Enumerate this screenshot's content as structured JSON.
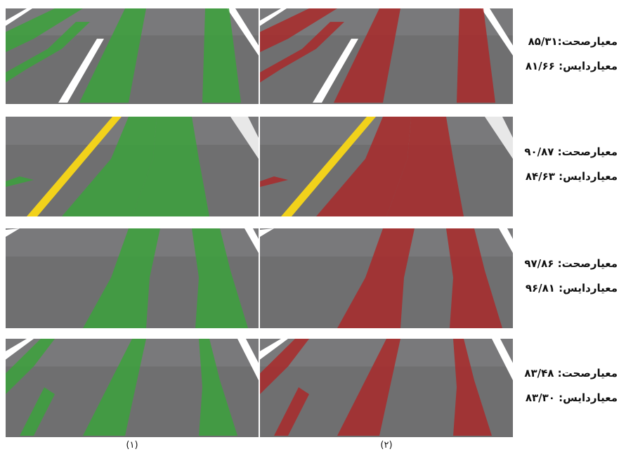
{
  "rows": [
    {
      "accuracy": "معیارصحت:۸۵/۳۱",
      "dice": "معیاردایس: ۸۱/۶۶"
    },
    {
      "accuracy": "معیارصحت: ۹۰/۸۷",
      "dice": "معیاردایس: ۸۴/۶۳"
    },
    {
      "accuracy": "معیارصحت: ۹۷/۸۶",
      "dice": "معیاردایس: ۹۶/۸۱"
    },
    {
      "accuracy": "معیارصحت: ۸۳/۴۸",
      "dice": "معیاردایس: ۸۳/۳۰"
    }
  ],
  "captions": [
    "(۱)",
    "(۲)"
  ]
}
